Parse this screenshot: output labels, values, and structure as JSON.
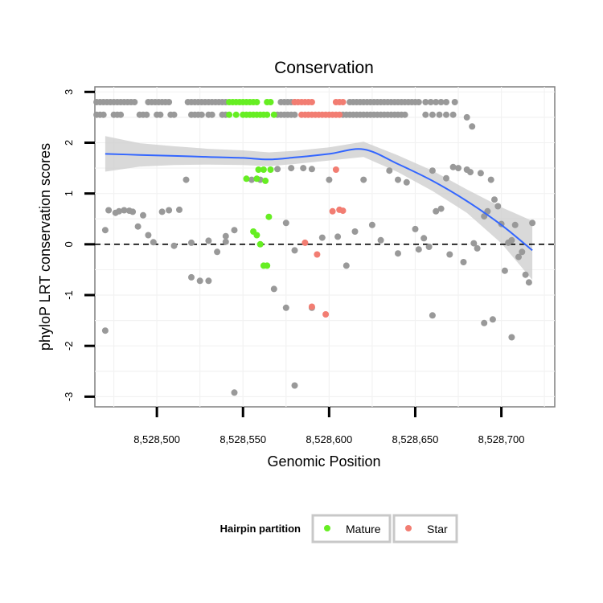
{
  "chart_data": {
    "type": "scatter",
    "title": "Conservation",
    "xlabel": "Genomic Position",
    "ylabel": "phyloP LRT conservation scores",
    "xlim": [
      8528464,
      8528731
    ],
    "ylim": [
      -3.2,
      3.1
    ],
    "x_ticks": [
      {
        "value": 8528500,
        "label": "8,528,500"
      },
      {
        "value": 8528550,
        "label": "8,528,550"
      },
      {
        "value": 8528600,
        "label": "8,528,600"
      },
      {
        "value": 8528650,
        "label": "8,528,650"
      },
      {
        "value": 8528700,
        "label": "8,528,700"
      }
    ],
    "y_ticks": [
      {
        "value": -3,
        "label": "-3"
      },
      {
        "value": -2,
        "label": "-2"
      },
      {
        "value": -1,
        "label": "-1"
      },
      {
        "value": 0,
        "label": "0"
      },
      {
        "value": 1,
        "label": "1"
      },
      {
        "value": 2,
        "label": "2"
      },
      {
        "value": 3,
        "label": "3"
      }
    ],
    "reference_line": {
      "y": 0,
      "style": "dashed"
    },
    "colors": {
      "other": "#999999",
      "Mature": "#66ee22",
      "Star": "#f27d72",
      "smooth": "#3366ff",
      "band": "#cccccc"
    },
    "legend": {
      "title": "Hairpin partition",
      "position": "bottom",
      "entries": [
        {
          "label": "Mature",
          "group": "Mature"
        },
        {
          "label": "Star",
          "group": "Star"
        }
      ]
    },
    "series": [
      {
        "name": "Other",
        "group": "other",
        "x": [
          8528465,
          8528467,
          8528469,
          8528471,
          8528473,
          8528475,
          8528477,
          8528479,
          8528481,
          8528483,
          8528485,
          8528487,
          8528495,
          8528497,
          8528499,
          8528501,
          8528503,
          8528505,
          8528507,
          8528518,
          8528520,
          8528522,
          8528524,
          8528526,
          8528528,
          8528530,
          8528532,
          8528534,
          8528536,
          8528538,
          8528540,
          8528572,
          8528574,
          8528576,
          8528578,
          8528580,
          8528612,
          8528614,
          8528616,
          8528618,
          8528620,
          8528622,
          8528624,
          8528626,
          8528628,
          8528630,
          8528632,
          8528634,
          8528636,
          8528638,
          8528640,
          8528642,
          8528644,
          8528646,
          8528648,
          8528650,
          8528652,
          8528656,
          8528659,
          8528662,
          8528665,
          8528668,
          8528673,
          8528465,
          8528467,
          8528469,
          8528475,
          8528477,
          8528479,
          8528490,
          8528492,
          8528494,
          8528500,
          8528502,
          8528508,
          8528510,
          8528520,
          8528522,
          8528524,
          8528526,
          8528530,
          8528532,
          8528538,
          8528540,
          8528570,
          8528572,
          8528574,
          8528576,
          8528578,
          8528580,
          8528608,
          8528610,
          8528612,
          8528614,
          8528616,
          8528618,
          8528620,
          8528622,
          8528624,
          8528626,
          8528628,
          8528630,
          8528632,
          8528634,
          8528636,
          8528638,
          8528640,
          8528642,
          8528644,
          8528656,
          8528660,
          8528664,
          8528668,
          8528672,
          8528680,
          8528683,
          8528470,
          8528472,
          8528476,
          8528478,
          8528481,
          8528484,
          8528486,
          8528489,
          8528492,
          8528495,
          8528498,
          8528503,
          8528507,
          8528510,
          8528513,
          8528517,
          8528520,
          8528525,
          8528530,
          8528535,
          8528540,
          8528545,
          8528555,
          8528560,
          8528570,
          8528575,
          8528578,
          8528580,
          8528585,
          8528590,
          8528596,
          8528600,
          8528605,
          8528610,
          8528615,
          8528620,
          8528625,
          8528630,
          8528635,
          8528640,
          8528645,
          8528650,
          8528652,
          8528655,
          8528658,
          8528660,
          8528662,
          8528665,
          8528668,
          8528670,
          8528672,
          8528675,
          8528678,
          8528680,
          8528682,
          8528684,
          8528686,
          8528688,
          8528690,
          8528692,
          8528694,
          8528696,
          8528698,
          8528700,
          8528702,
          8528704,
          8528706,
          8528708,
          8528710,
          8528712,
          8528714,
          8528716,
          8528718,
          8528470,
          8528520,
          8528530,
          8528545,
          8528568,
          8528575,
          8528640,
          8528660,
          8528690,
          8528695,
          8528706,
          8528590,
          8528540,
          8528580
        ],
        "y": [
          2.8,
          2.8,
          2.8,
          2.8,
          2.8,
          2.8,
          2.8,
          2.8,
          2.8,
          2.8,
          2.8,
          2.8,
          2.8,
          2.8,
          2.8,
          2.8,
          2.8,
          2.8,
          2.8,
          2.8,
          2.8,
          2.8,
          2.8,
          2.8,
          2.8,
          2.8,
          2.8,
          2.8,
          2.8,
          2.8,
          2.8,
          2.8,
          2.8,
          2.8,
          2.8,
          2.8,
          2.8,
          2.8,
          2.8,
          2.8,
          2.8,
          2.8,
          2.8,
          2.8,
          2.8,
          2.8,
          2.8,
          2.8,
          2.8,
          2.8,
          2.8,
          2.8,
          2.8,
          2.8,
          2.8,
          2.8,
          2.8,
          2.8,
          2.8,
          2.8,
          2.8,
          2.8,
          2.8,
          2.55,
          2.55,
          2.55,
          2.55,
          2.55,
          2.55,
          2.55,
          2.55,
          2.55,
          2.55,
          2.55,
          2.55,
          2.55,
          2.55,
          2.55,
          2.55,
          2.55,
          2.55,
          2.55,
          2.55,
          2.55,
          2.55,
          2.55,
          2.55,
          2.55,
          2.55,
          2.55,
          2.55,
          2.55,
          2.55,
          2.55,
          2.55,
          2.55,
          2.55,
          2.55,
          2.55,
          2.55,
          2.55,
          2.55,
          2.55,
          2.55,
          2.55,
          2.55,
          2.55,
          2.55,
          2.55,
          2.55,
          2.55,
          2.55,
          2.55,
          2.55,
          2.5,
          2.32,
          0.28,
          0.67,
          0.62,
          0.65,
          0.67,
          0.66,
          0.64,
          0.35,
          0.57,
          0.18,
          0.04,
          0.64,
          0.67,
          -0.03,
          0.68,
          1.27,
          0.03,
          -0.72,
          0.07,
          -0.15,
          0.16,
          0.28,
          1.27,
          1.27,
          1.48,
          0.42,
          1.5,
          -0.12,
          1.5,
          1.48,
          0.13,
          1.27,
          0.15,
          -0.42,
          0.25,
          1.27,
          0.38,
          0.08,
          1.45,
          1.27,
          1.22,
          0.3,
          -0.1,
          0.12,
          -0.05,
          1.45,
          0.65,
          0.7,
          1.3,
          -0.2,
          1.52,
          1.5,
          -0.35,
          1.47,
          1.42,
          0.02,
          -0.08,
          1.4,
          0.55,
          0.65,
          1.27,
          0.88,
          0.75,
          0.4,
          -0.52,
          0.03,
          0.08,
          0.38,
          -0.25,
          -0.15,
          -0.6,
          -0.75,
          0.42,
          -1.7,
          -0.65,
          -0.72,
          -2.92,
          -0.88,
          -1.25,
          -0.18,
          -1.4,
          -1.55,
          -1.48,
          -1.83,
          -1.25,
          0.05,
          -2.78
        ]
      },
      {
        "name": "Mature",
        "group": "Mature",
        "x": [
          8528542,
          8528544,
          8528546,
          8528548,
          8528550,
          8528552,
          8528554,
          8528556,
          8528558,
          8528564,
          8528566,
          8528542,
          8528546,
          8528550,
          8528552,
          8528554,
          8528556,
          8528558,
          8528560,
          8528562,
          8528564,
          8528568,
          8528559,
          8528562,
          8528566,
          8528552,
          8528558,
          8528563,
          8528565,
          8528556,
          8528558,
          8528560,
          8528562,
          8528564
        ],
        "y": [
          2.8,
          2.8,
          2.8,
          2.8,
          2.8,
          2.8,
          2.8,
          2.8,
          2.8,
          2.8,
          2.8,
          2.55,
          2.55,
          2.55,
          2.55,
          2.55,
          2.55,
          2.55,
          2.55,
          2.55,
          2.55,
          2.55,
          1.47,
          1.47,
          1.47,
          1.29,
          1.29,
          1.25,
          0.54,
          0.25,
          0.18,
          0.0,
          -0.42,
          -0.42
        ]
      },
      {
        "name": "Star",
        "group": "Star",
        "x": [
          8528580,
          8528582,
          8528584,
          8528586,
          8528588,
          8528590,
          8528604,
          8528606,
          8528608,
          8528584,
          8528586,
          8528588,
          8528590,
          8528592,
          8528594,
          8528596,
          8528598,
          8528600,
          8528602,
          8528604,
          8528606,
          8528604,
          8528602,
          8528606,
          8528608,
          8528586,
          8528593,
          8528590,
          8528598
        ],
        "y": [
          2.8,
          2.8,
          2.8,
          2.8,
          2.8,
          2.8,
          2.8,
          2.8,
          2.8,
          2.55,
          2.55,
          2.55,
          2.55,
          2.55,
          2.55,
          2.55,
          2.55,
          2.55,
          2.55,
          2.55,
          2.55,
          1.47,
          0.65,
          0.68,
          0.66,
          0.03,
          -0.2,
          -1.23,
          -1.38
        ]
      }
    ],
    "smooth_fit": {
      "x": [
        8528470,
        8528490,
        8528510,
        8528530,
        8528550,
        8528565,
        8528580,
        8528600,
        8528620,
        8528640,
        8528660,
        8528680,
        8528700,
        8528718
      ],
      "y": [
        1.78,
        1.76,
        1.74,
        1.72,
        1.7,
        1.67,
        1.71,
        1.78,
        1.87,
        1.58,
        1.25,
        0.85,
        0.38,
        -0.12
      ],
      "lower": [
        1.43,
        1.53,
        1.56,
        1.57,
        1.56,
        1.54,
        1.58,
        1.65,
        1.72,
        1.42,
        1.05,
        0.62,
        0.02,
        -0.7
      ],
      "upper": [
        2.13,
        1.99,
        1.93,
        1.88,
        1.85,
        1.81,
        1.84,
        1.91,
        2.02,
        1.75,
        1.45,
        1.08,
        0.73,
        0.46
      ]
    }
  }
}
